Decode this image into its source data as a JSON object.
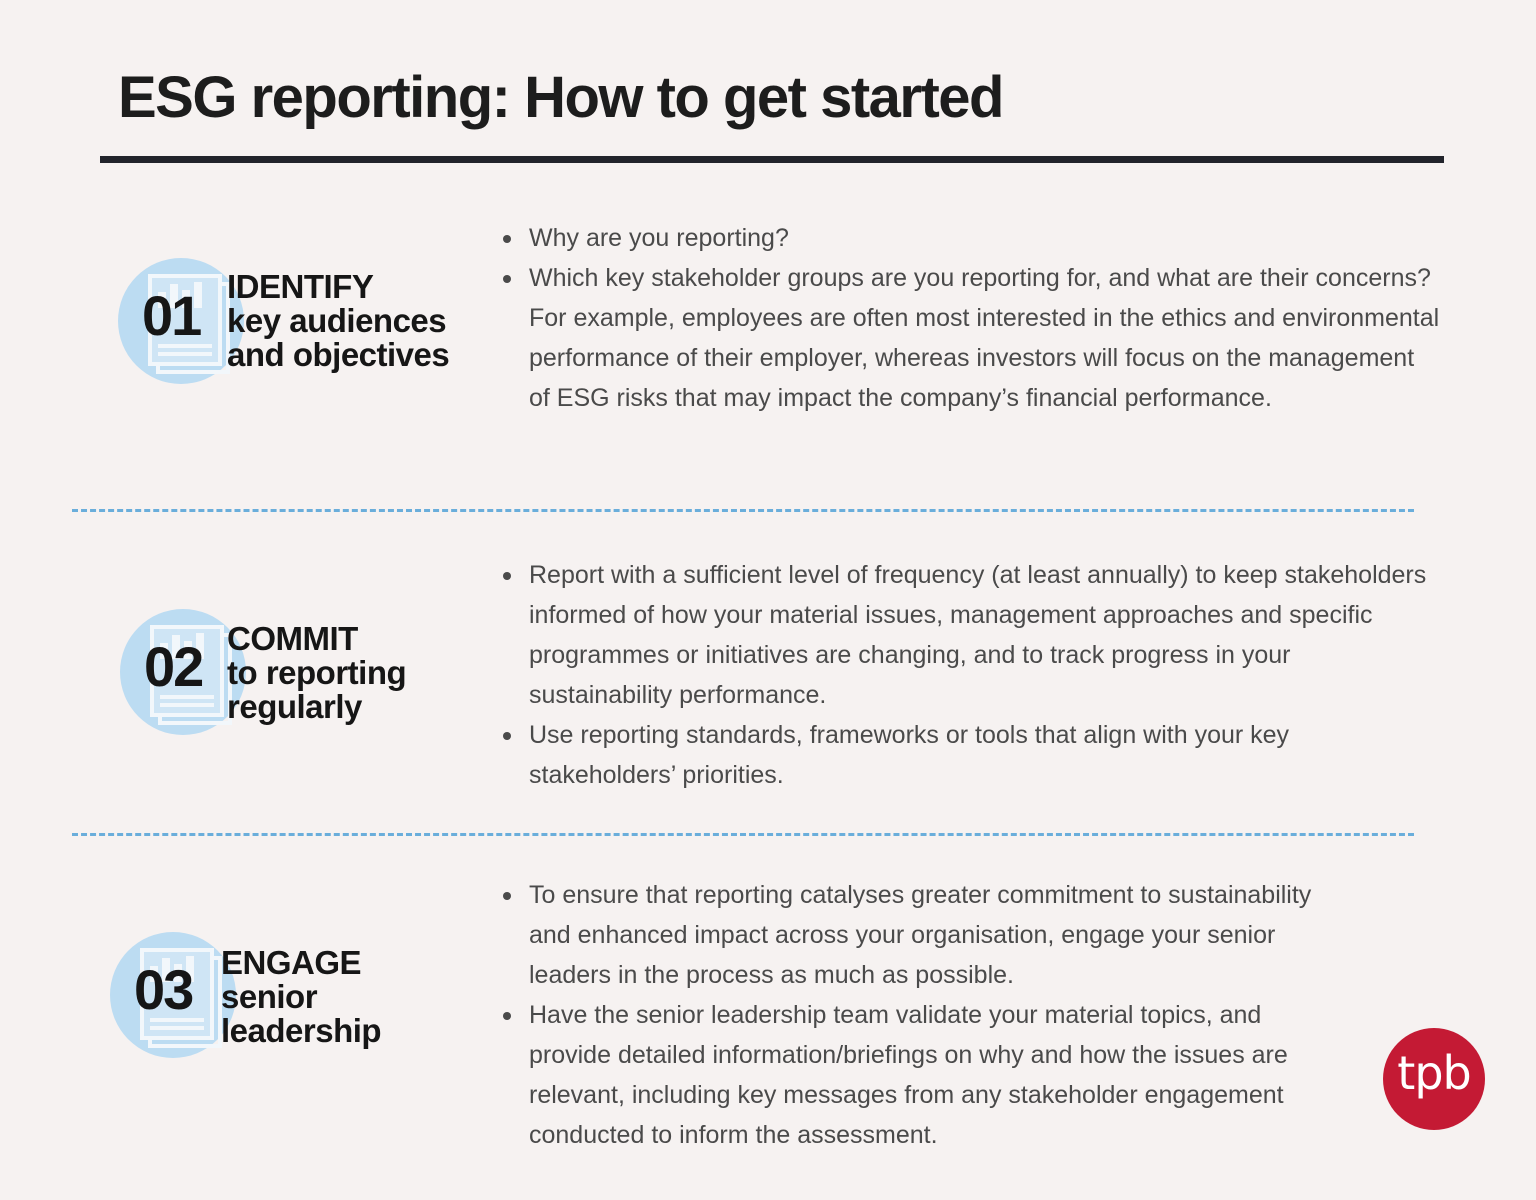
{
  "title": "ESG reporting: How to get started",
  "colors": {
    "background": "#f6f2f1",
    "badge": "#bcdcf2",
    "divider": "#6aaedb",
    "logo": "#c41a34"
  },
  "sections": [
    {
      "number": "01",
      "heading": [
        "IDENTIFY",
        "key audiences",
        "and objectives"
      ],
      "icon": "report-document-icon",
      "points": [
        "Why are you reporting?",
        "Which key stakeholder groups are you reporting for, and what are their concerns? For example, employees are often most interested in the ethics and environmental performance of their employer, whereas investors will focus on the management of ESG risks that may impact the company’s financial performance."
      ]
    },
    {
      "number": "02",
      "heading": [
        "COMMIT",
        "to reporting",
        "regularly"
      ],
      "icon": "report-document-icon",
      "points": [
        "Report with a sufficient level of frequency (at least annually) to keep stakeholders informed of how your material issues, management approaches and specific programmes or initiatives are changing, and to track progress in your sustainability performance.",
        "Use reporting standards, frameworks or tools that align with your key stakeholders’ priorities."
      ]
    },
    {
      "number": "03",
      "heading": [
        "ENGAGE",
        "senior",
        "leadership"
      ],
      "icon": "report-document-icon",
      "points": [
        "To ensure that reporting catalyses greater commitment to sustainability and enhanced impact across your organisation, engage your senior leaders in the process as much as possible.",
        "Have the senior leadership team validate your material topics, and provide detailed information/briefings on why and how the issues are relevant, including key messages from any stakeholder engagement conducted to inform the assessment."
      ]
    }
  ],
  "logo": {
    "text": "tpb"
  }
}
